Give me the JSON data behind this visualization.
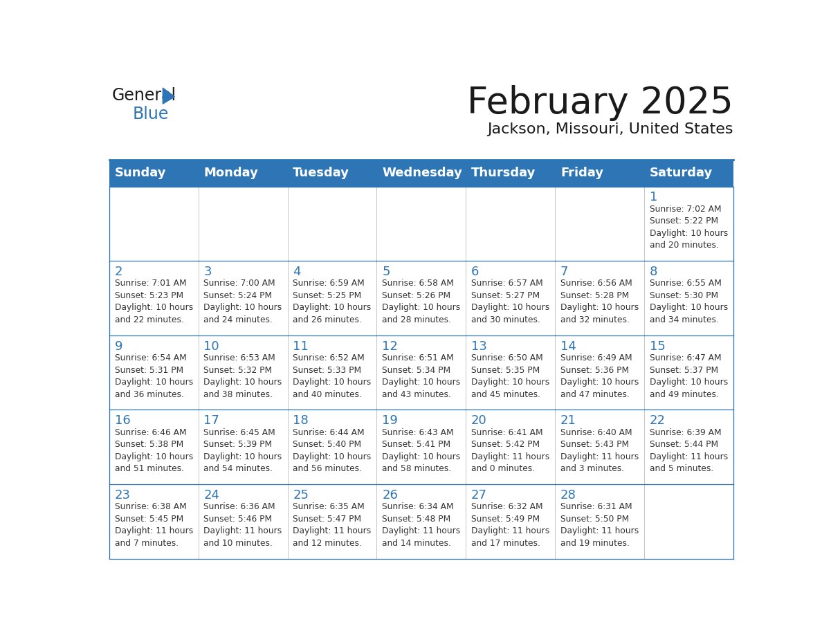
{
  "title": "February 2025",
  "subtitle": "Jackson, Missouri, United States",
  "header_bg_color": "#2e75b6",
  "header_text_color": "#ffffff",
  "grid_color": "#2e75b6",
  "title_color": "#1a1a1a",
  "subtitle_color": "#1a1a1a",
  "day_number_color": "#2e75b6",
  "cell_text_color": "#333333",
  "days_of_week": [
    "Sunday",
    "Monday",
    "Tuesday",
    "Wednesday",
    "Thursday",
    "Friday",
    "Saturday"
  ],
  "weeks": [
    [
      {
        "day": null,
        "info": null
      },
      {
        "day": null,
        "info": null
      },
      {
        "day": null,
        "info": null
      },
      {
        "day": null,
        "info": null
      },
      {
        "day": null,
        "info": null
      },
      {
        "day": null,
        "info": null
      },
      {
        "day": 1,
        "info": "Sunrise: 7:02 AM\nSunset: 5:22 PM\nDaylight: 10 hours\nand 20 minutes."
      }
    ],
    [
      {
        "day": 2,
        "info": "Sunrise: 7:01 AM\nSunset: 5:23 PM\nDaylight: 10 hours\nand 22 minutes."
      },
      {
        "day": 3,
        "info": "Sunrise: 7:00 AM\nSunset: 5:24 PM\nDaylight: 10 hours\nand 24 minutes."
      },
      {
        "day": 4,
        "info": "Sunrise: 6:59 AM\nSunset: 5:25 PM\nDaylight: 10 hours\nand 26 minutes."
      },
      {
        "day": 5,
        "info": "Sunrise: 6:58 AM\nSunset: 5:26 PM\nDaylight: 10 hours\nand 28 minutes."
      },
      {
        "day": 6,
        "info": "Sunrise: 6:57 AM\nSunset: 5:27 PM\nDaylight: 10 hours\nand 30 minutes."
      },
      {
        "day": 7,
        "info": "Sunrise: 6:56 AM\nSunset: 5:28 PM\nDaylight: 10 hours\nand 32 minutes."
      },
      {
        "day": 8,
        "info": "Sunrise: 6:55 AM\nSunset: 5:30 PM\nDaylight: 10 hours\nand 34 minutes."
      }
    ],
    [
      {
        "day": 9,
        "info": "Sunrise: 6:54 AM\nSunset: 5:31 PM\nDaylight: 10 hours\nand 36 minutes."
      },
      {
        "day": 10,
        "info": "Sunrise: 6:53 AM\nSunset: 5:32 PM\nDaylight: 10 hours\nand 38 minutes."
      },
      {
        "day": 11,
        "info": "Sunrise: 6:52 AM\nSunset: 5:33 PM\nDaylight: 10 hours\nand 40 minutes."
      },
      {
        "day": 12,
        "info": "Sunrise: 6:51 AM\nSunset: 5:34 PM\nDaylight: 10 hours\nand 43 minutes."
      },
      {
        "day": 13,
        "info": "Sunrise: 6:50 AM\nSunset: 5:35 PM\nDaylight: 10 hours\nand 45 minutes."
      },
      {
        "day": 14,
        "info": "Sunrise: 6:49 AM\nSunset: 5:36 PM\nDaylight: 10 hours\nand 47 minutes."
      },
      {
        "day": 15,
        "info": "Sunrise: 6:47 AM\nSunset: 5:37 PM\nDaylight: 10 hours\nand 49 minutes."
      }
    ],
    [
      {
        "day": 16,
        "info": "Sunrise: 6:46 AM\nSunset: 5:38 PM\nDaylight: 10 hours\nand 51 minutes."
      },
      {
        "day": 17,
        "info": "Sunrise: 6:45 AM\nSunset: 5:39 PM\nDaylight: 10 hours\nand 54 minutes."
      },
      {
        "day": 18,
        "info": "Sunrise: 6:44 AM\nSunset: 5:40 PM\nDaylight: 10 hours\nand 56 minutes."
      },
      {
        "day": 19,
        "info": "Sunrise: 6:43 AM\nSunset: 5:41 PM\nDaylight: 10 hours\nand 58 minutes."
      },
      {
        "day": 20,
        "info": "Sunrise: 6:41 AM\nSunset: 5:42 PM\nDaylight: 11 hours\nand 0 minutes."
      },
      {
        "day": 21,
        "info": "Sunrise: 6:40 AM\nSunset: 5:43 PM\nDaylight: 11 hours\nand 3 minutes."
      },
      {
        "day": 22,
        "info": "Sunrise: 6:39 AM\nSunset: 5:44 PM\nDaylight: 11 hours\nand 5 minutes."
      }
    ],
    [
      {
        "day": 23,
        "info": "Sunrise: 6:38 AM\nSunset: 5:45 PM\nDaylight: 11 hours\nand 7 minutes."
      },
      {
        "day": 24,
        "info": "Sunrise: 6:36 AM\nSunset: 5:46 PM\nDaylight: 11 hours\nand 10 minutes."
      },
      {
        "day": 25,
        "info": "Sunrise: 6:35 AM\nSunset: 5:47 PM\nDaylight: 11 hours\nand 12 minutes."
      },
      {
        "day": 26,
        "info": "Sunrise: 6:34 AM\nSunset: 5:48 PM\nDaylight: 11 hours\nand 14 minutes."
      },
      {
        "day": 27,
        "info": "Sunrise: 6:32 AM\nSunset: 5:49 PM\nDaylight: 11 hours\nand 17 minutes."
      },
      {
        "day": 28,
        "info": "Sunrise: 6:31 AM\nSunset: 5:50 PM\nDaylight: 11 hours\nand 19 minutes."
      },
      {
        "day": null,
        "info": null
      }
    ]
  ],
  "logo_general_color": "#1a1a1a",
  "logo_blue_color": "#2e75b6",
  "logo_triangle_color": "#2e75b6",
  "separator_color": "#2e75b6",
  "vert_line_color": "#bbbbbb"
}
